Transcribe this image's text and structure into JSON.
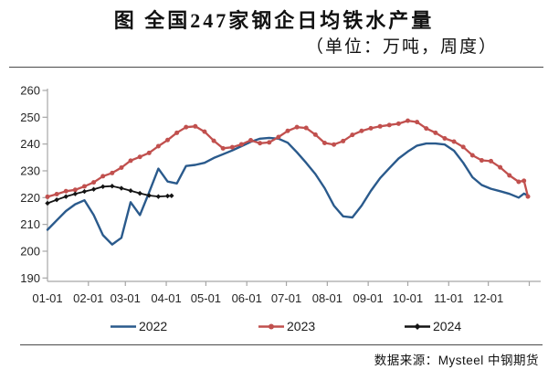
{
  "header": {
    "title": "图 全国247家钢企日均铁水产量",
    "subtitle": "（单位：万吨，周度）"
  },
  "footer": {
    "source": "数据来源：Mysteel 中钢期货"
  },
  "chart_data": {
    "type": "line",
    "title": "图 全国247家钢企日均铁水产量",
    "unit": "万吨",
    "frequency": "周度",
    "xlabel": "",
    "ylabel": "",
    "ylim": [
      190,
      260
    ],
    "ytick_interval": 10,
    "grid": false,
    "legend_position": "bottom",
    "axis_color": "#a6a6a6",
    "tick_label_color": "#262626",
    "x_unit": "month-day (day of year)",
    "x_tick_labels": [
      "01-01",
      "02-01",
      "03-01",
      "04-01",
      "05-01",
      "06-01",
      "07-01",
      "08-01",
      "09-01",
      "10-01",
      "11-01",
      "12-01"
    ],
    "series": [
      {
        "name": "2022",
        "color": "#2a5a8c",
        "marker": "none",
        "line_width": 2.4,
        "points": [
          [
            1,
            208
          ],
          [
            8,
            211.5
          ],
          [
            15,
            215
          ],
          [
            22,
            217.5
          ],
          [
            29,
            219
          ],
          [
            36,
            213.5
          ],
          [
            43,
            206
          ],
          [
            50,
            202.5
          ],
          [
            57,
            205
          ],
          [
            64,
            218.3
          ],
          [
            71,
            213.5
          ],
          [
            78,
            222
          ],
          [
            85,
            230.8
          ],
          [
            92,
            226
          ],
          [
            99,
            225.3
          ],
          [
            106,
            231.8
          ],
          [
            113,
            232.2
          ],
          [
            120,
            233
          ],
          [
            127,
            234.8
          ],
          [
            134,
            236.2
          ],
          [
            141,
            237.6
          ],
          [
            148,
            239.2
          ],
          [
            155,
            240.8
          ],
          [
            162,
            242
          ],
          [
            169,
            242.3
          ],
          [
            176,
            242
          ],
          [
            183,
            240.5
          ],
          [
            190,
            236.9
          ],
          [
            197,
            233
          ],
          [
            204,
            228.8
          ],
          [
            211,
            223.5
          ],
          [
            218,
            217
          ],
          [
            225,
            213
          ],
          [
            232,
            212.6
          ],
          [
            239,
            217
          ],
          [
            246,
            222.5
          ],
          [
            253,
            227.3
          ],
          [
            260,
            231
          ],
          [
            267,
            234.6
          ],
          [
            274,
            237.2
          ],
          [
            281,
            239.4
          ],
          [
            288,
            240.2
          ],
          [
            295,
            240.2
          ],
          [
            302,
            239.8
          ],
          [
            309,
            237.5
          ],
          [
            316,
            233
          ],
          [
            323,
            227.6
          ],
          [
            330,
            224.7
          ],
          [
            337,
            223.3
          ],
          [
            344,
            222.4
          ],
          [
            351,
            221.4
          ],
          [
            358,
            220
          ],
          [
            362,
            221.5
          ],
          [
            365,
            220.8
          ]
        ]
      },
      {
        "name": "2023",
        "color": "#c1504e",
        "marker": "circle",
        "line_width": 2.3,
        "points": [
          [
            1,
            220.3
          ],
          [
            8,
            221.3
          ],
          [
            15,
            222.4
          ],
          [
            22,
            222.9
          ],
          [
            29,
            224.2
          ],
          [
            36,
            225.7
          ],
          [
            43,
            228
          ],
          [
            50,
            229.2
          ],
          [
            57,
            231.2
          ],
          [
            64,
            233.8
          ],
          [
            71,
            235.2
          ],
          [
            78,
            236.7
          ],
          [
            85,
            239.2
          ],
          [
            92,
            241.5
          ],
          [
            99,
            244.2
          ],
          [
            106,
            246.3
          ],
          [
            113,
            246.6
          ],
          [
            120,
            244.6
          ],
          [
            127,
            241.2
          ],
          [
            134,
            238.4
          ],
          [
            141,
            238.8
          ],
          [
            148,
            239.9
          ],
          [
            155,
            241.4
          ],
          [
            162,
            240.3
          ],
          [
            169,
            240.6
          ],
          [
            176,
            242.6
          ],
          [
            183,
            244.9
          ],
          [
            190,
            246.3
          ],
          [
            197,
            246
          ],
          [
            204,
            243.5
          ],
          [
            211,
            240.4
          ],
          [
            218,
            239.8
          ],
          [
            225,
            241.1
          ],
          [
            232,
            243.4
          ],
          [
            239,
            244.9
          ],
          [
            246,
            245.9
          ],
          [
            253,
            246.6
          ],
          [
            260,
            247.1
          ],
          [
            267,
            247.6
          ],
          [
            274,
            248.7
          ],
          [
            281,
            248.2
          ],
          [
            288,
            245.8
          ],
          [
            295,
            244.2
          ],
          [
            302,
            242.1
          ],
          [
            309,
            240.9
          ],
          [
            316,
            238.9
          ],
          [
            323,
            235.8
          ],
          [
            330,
            233.9
          ],
          [
            337,
            233.6
          ],
          [
            344,
            231.3
          ],
          [
            351,
            228.3
          ],
          [
            358,
            225.9
          ],
          [
            362,
            226.3
          ],
          [
            365,
            220.4
          ]
        ]
      },
      {
        "name": "2024",
        "color": "#141414",
        "marker": "diamond",
        "line_width": 1.8,
        "points": [
          [
            1,
            217.9
          ],
          [
            8,
            219.2
          ],
          [
            15,
            220.4
          ],
          [
            22,
            221.4
          ],
          [
            29,
            222.3
          ],
          [
            36,
            223.1
          ],
          [
            43,
            224.1
          ],
          [
            50,
            224.3
          ],
          [
            57,
            223.5
          ],
          [
            64,
            222.6
          ],
          [
            71,
            221.6
          ],
          [
            78,
            220.8
          ],
          [
            85,
            220.4
          ],
          [
            92,
            220.6
          ],
          [
            95,
            220.7
          ]
        ]
      }
    ]
  }
}
